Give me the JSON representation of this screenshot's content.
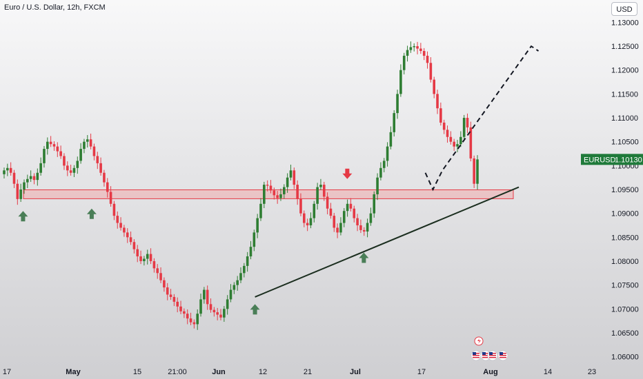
{
  "header": {
    "title": "Euro / U.S. Dollar, 12h, FXCM"
  },
  "currency_button": "USD",
  "colors": {
    "up": "#2e7d32",
    "down": "#e53945",
    "zone_fill": "rgba(255,120,120,0.28)",
    "zone_border": "#e53945",
    "trendline": "#1b2e1f",
    "projection": "#131722",
    "arrow_up": "#4a7e57",
    "arrow_down": "#e53945",
    "price_label_bg": "#1f7a3a"
  },
  "chart_data": {
    "type": "candlestick",
    "symbol": "EURUSD",
    "last_price": "1.10130",
    "y_ticks": [
      "1.13000",
      "1.12500",
      "1.12000",
      "1.11500",
      "1.11000",
      "1.10500",
      "1.10000",
      "1.09500",
      "1.09000",
      "1.08500",
      "1.08000",
      "1.07500",
      "1.07000",
      "1.06500",
      "1.06000"
    ],
    "x_ticks": [
      {
        "label": "17",
        "bold": false
      },
      {
        "label": "May",
        "bold": true
      },
      {
        "label": "15",
        "bold": false
      },
      {
        "label": "21:00",
        "bold": false
      },
      {
        "label": "Jun",
        "bold": true
      },
      {
        "label": "12",
        "bold": false
      },
      {
        "label": "21",
        "bold": false
      },
      {
        "label": "Jul",
        "bold": true
      },
      {
        "label": "17",
        "bold": false
      },
      {
        "label": "Aug",
        "bold": true
      },
      {
        "label": "14",
        "bold": false
      },
      {
        "label": "23",
        "bold": false
      }
    ],
    "ylim": [
      1.0585,
      1.1315
    ],
    "closes": [
      1.099,
      1.0995,
      1.0985,
      1.0962,
      1.093,
      1.095,
      1.0965,
      1.0972,
      1.0978,
      1.097,
      1.0985,
      1.1005,
      1.1035,
      1.105,
      1.1045,
      1.104,
      1.103,
      1.102,
      1.1,
      1.099,
      1.0985,
      1.0995,
      1.101,
      1.1035,
      1.105,
      1.1055,
      1.104,
      1.102,
      1.1005,
      1.0985,
      1.0965,
      1.0945,
      1.092,
      1.0895,
      1.088,
      1.087,
      1.086,
      1.085,
      1.084,
      1.0825,
      1.081,
      1.08,
      1.0805,
      1.0815,
      1.08,
      1.0785,
      1.0775,
      1.076,
      1.0745,
      1.073,
      1.0725,
      1.0715,
      1.0705,
      1.0695,
      1.069,
      1.068,
      1.0672,
      1.0668,
      1.069,
      1.072,
      1.074,
      1.071,
      1.0698,
      1.0693,
      1.0688,
      1.0682,
      1.07,
      1.072,
      1.074,
      1.075,
      1.076,
      1.0775,
      1.079,
      1.081,
      1.083,
      1.086,
      1.089,
      1.092,
      1.096,
      1.0958,
      1.0948,
      1.0938,
      1.0932,
      1.094,
      1.0955,
      1.0975,
      1.099,
      1.096,
      1.093,
      1.09,
      1.088,
      1.0875,
      1.089,
      1.092,
      1.0955,
      1.096,
      1.0935,
      1.091,
      1.0895,
      1.087,
      1.086,
      1.088,
      1.0905,
      1.092,
      1.091,
      1.089,
      1.0875,
      1.0865,
      1.0862,
      1.088,
      1.09,
      1.094,
      1.0975,
      1.0995,
      1.101,
      1.104,
      1.107,
      1.111,
      1.115,
      1.12,
      1.123,
      1.1242,
      1.1248,
      1.125,
      1.1245,
      1.124,
      1.123,
      1.1215,
      1.118,
      1.115,
      1.112,
      1.109,
      1.1075,
      1.106,
      1.105,
      1.104,
      1.1045,
      1.106,
      1.11,
      1.108,
      1.1015,
      1.0962,
      1.1013
    ],
    "zone": [
      1.0935,
      1.0945
    ],
    "trendline": [
      [
        0.53,
        1.0725
      ],
      [
        1.0,
        1.0955
      ]
    ],
    "projection": [
      [
        0.89,
        1.0985
      ],
      [
        0.906,
        1.095
      ],
      [
        0.926,
        1.099
      ],
      [
        0.978,
        1.125
      ],
      [
        0.985,
        1.124
      ]
    ],
    "arrows": [
      {
        "type": "up",
        "x": 0.04,
        "y": 1.0905
      },
      {
        "type": "up",
        "x": 0.185,
        "y": 1.091
      },
      {
        "type": "up",
        "x": 0.53,
        "y": 1.071
      },
      {
        "type": "down",
        "x": 0.725,
        "y": 1.0972
      },
      {
        "type": "up",
        "x": 0.76,
        "y": 1.0818
      }
    ],
    "markers": [
      {
        "type": "lightning-icon",
        "x": 0.97
      },
      {
        "type": "flag-icon",
        "x": 0.96
      },
      {
        "type": "flag-icon",
        "x": 0.974
      },
      {
        "type": "flag-icon",
        "x": 0.988
      },
      {
        "type": "flag-icon",
        "x": 1.01
      }
    ]
  }
}
